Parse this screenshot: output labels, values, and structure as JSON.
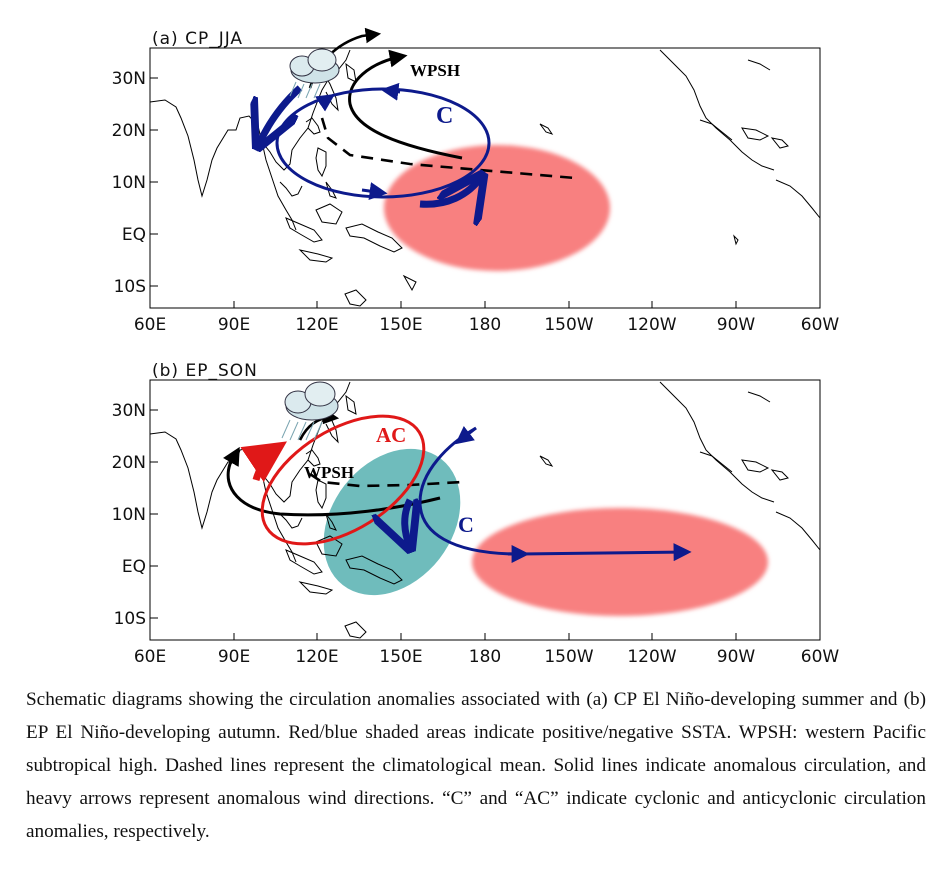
{
  "panels": [
    {
      "id": "a",
      "title": "(a) CP_JJA",
      "labels": {
        "wpsh": "WPSH",
        "circulation": "C"
      }
    },
    {
      "id": "b",
      "title": "(b) EP_SON",
      "labels": {
        "wpsh": "WPSH",
        "anticyclone": "AC",
        "cyclone": "C"
      }
    }
  ],
  "axes": {
    "lat_ticks": [
      "30N",
      "20N",
      "10N",
      "EQ",
      "10S"
    ],
    "lon_ticks": [
      "60E",
      "90E",
      "120E",
      "150E",
      "180",
      "150W",
      "120W",
      "90W",
      "60W"
    ]
  },
  "colors": {
    "positive_ssta": "#f88080",
    "negative_ssta": "#6fbcbc",
    "cyclone": "#0d1a8c",
    "anticyclone": "#e01818",
    "line": "#000000"
  },
  "icons": {
    "cloud": "rain-cloud-icon"
  },
  "caption": "Schematic diagrams showing the circulation anomalies associated with (a) CP El Niño-developing summer and (b) EP El Niño-developing autumn. Red/blue shaded areas indicate positive/negative SSTA. WPSH: western Pacific subtropical high. Dashed lines represent the climatological mean. Solid lines indicate anomalous circulation, and heavy arrows represent anomalous wind directions. “C” and “AC” indicate cyclonic and anticyclonic circulation anomalies, respectively."
}
